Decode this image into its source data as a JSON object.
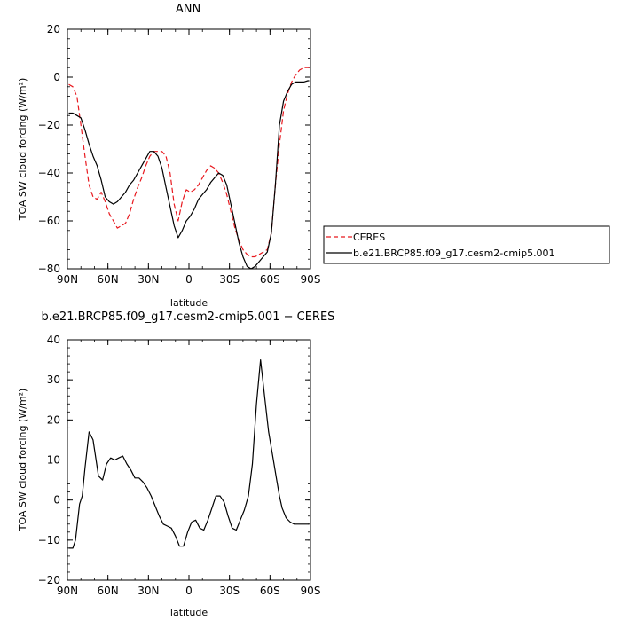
{
  "chart_data": [
    {
      "type": "line",
      "title": "ANN",
      "xlabel": "latitude",
      "ylabel": "TOA SW cloud forcing (W/m²)",
      "xlim": [
        90,
        -90
      ],
      "ylim": [
        -80,
        20
      ],
      "xticks": [
        90,
        60,
        30,
        0,
        -30,
        -60,
        -90
      ],
      "xtick_labels": [
        "90N",
        "60N",
        "30N",
        "0",
        "30S",
        "60S",
        "90S"
      ],
      "yticks": [
        -80,
        -60,
        -40,
        -20,
        0,
        20
      ],
      "ytick_labels": [
        "−80",
        "−60",
        "−40",
        "−20",
        "0",
        "20"
      ],
      "legend": {
        "placement": "outside-right"
      },
      "series": [
        {
          "name": "CERES",
          "color": "#e8191f",
          "dash": "dashed",
          "x": [
            89,
            86,
            83,
            80,
            77,
            74,
            71,
            68,
            65,
            62,
            59,
            56,
            53,
            50,
            47,
            44,
            41,
            38,
            35,
            32,
            29,
            26,
            23,
            20,
            17,
            14,
            11,
            8,
            5,
            2,
            -1,
            -4,
            -7,
            -10,
            -13,
            -16,
            -19,
            -22,
            -25,
            -28,
            -31,
            -34,
            -37,
            -40,
            -43,
            -46,
            -49,
            -52,
            -55,
            -58,
            -61,
            -64,
            -67,
            -70,
            -73,
            -76,
            -79,
            -82,
            -85,
            -88,
            -89
          ],
          "y": [
            -3,
            -4,
            -8,
            -20,
            -33,
            -45,
            -50,
            -51,
            -48,
            -52,
            -57,
            -60,
            -63,
            -62,
            -61,
            -57,
            -51,
            -46,
            -42,
            -37,
            -33,
            -31,
            -31,
            -31,
            -33,
            -40,
            -53,
            -60,
            -52,
            -47,
            -48,
            -47,
            -45,
            -42,
            -39,
            -37,
            -38,
            -40,
            -44,
            -49,
            -56,
            -63,
            -68,
            -72,
            -74,
            -75,
            -75,
            -74,
            -73,
            -72,
            -65,
            -45,
            -28,
            -14,
            -7,
            -2,
            1,
            3,
            4,
            4,
            4
          ]
        },
        {
          "name": "b.e21.BRCP85.f09_g17.cesm2-cmip5.001",
          "color": "#000000",
          "dash": "solid",
          "x": [
            89,
            86,
            83,
            80,
            77,
            74,
            71,
            68,
            65,
            62,
            59,
            56,
            53,
            50,
            47,
            44,
            41,
            38,
            35,
            32,
            29,
            26,
            23,
            20,
            17,
            14,
            11,
            8,
            5,
            2,
            -1,
            -4,
            -7,
            -10,
            -13,
            -16,
            -19,
            -22,
            -25,
            -28,
            -31,
            -34,
            -37,
            -40,
            -43,
            -46,
            -49,
            -52,
            -55,
            -58,
            -61,
            -64,
            -67,
            -70,
            -73,
            -76,
            -79,
            -82,
            -85,
            -88,
            -89
          ],
          "y": [
            -15,
            -15,
            -16,
            -17,
            -22,
            -28,
            -33,
            -37,
            -43,
            -50,
            -52,
            -53,
            -52,
            -50,
            -48,
            -45,
            -43,
            -40,
            -37,
            -34,
            -31,
            -31,
            -33,
            -38,
            -46,
            -54,
            -62,
            -67,
            -64,
            -60,
            -58,
            -55,
            -51,
            -49,
            -47,
            -44,
            -42,
            -40,
            -41,
            -45,
            -53,
            -61,
            -69,
            -75,
            -79,
            -80,
            -79,
            -77,
            -75,
            -73,
            -65,
            -45,
            -20,
            -10,
            -6,
            -3,
            -2,
            -2,
            -2,
            -1.5,
            -1.5
          ]
        }
      ]
    },
    {
      "type": "line",
      "title": "b.e21.BRCP85.f09_g17.cesm2-cmip5.001 − CERES",
      "xlabel": "latitude",
      "ylabel": "TOA SW cloud forcing (W/m²)",
      "xlim": [
        90,
        -90
      ],
      "ylim": [
        -20,
        40
      ],
      "xticks": [
        90,
        60,
        30,
        0,
        -30,
        -60,
        -90
      ],
      "xtick_labels": [
        "90N",
        "60N",
        "30N",
        "0",
        "30S",
        "60S",
        "90S"
      ],
      "yticks": [
        -20,
        -10,
        0,
        10,
        20,
        30,
        40
      ],
      "ytick_labels": [
        "−20",
        "−10",
        "0",
        "10",
        "20",
        "30",
        "40"
      ],
      "series": [
        {
          "color": "#000000",
          "dash": "solid",
          "x": [
            89,
            86,
            84,
            81,
            79,
            77,
            74,
            71,
            67,
            64,
            61,
            58,
            55,
            52,
            49,
            46,
            43,
            40,
            37,
            34,
            31,
            28,
            25,
            22,
            19,
            16,
            13,
            10,
            7,
            4,
            1,
            -2,
            -5,
            -8,
            -11,
            -14,
            -17,
            -20,
            -23,
            -26,
            -29,
            -32,
            -35,
            -38,
            -41,
            -44,
            -47,
            -50,
            -53,
            -56,
            -59,
            -62,
            -65,
            -67,
            -69,
            -72,
            -75,
            -78,
            -81,
            -84,
            -87,
            -89
          ],
          "y": [
            -12,
            -12,
            -10,
            -1,
            1,
            8,
            17,
            15,
            6,
            5,
            9,
            10.5,
            10,
            10.5,
            11,
            9,
            7.5,
            5.5,
            5.5,
            4.5,
            3,
            1,
            -1.5,
            -4,
            -6,
            -6.5,
            -7,
            -9,
            -11.5,
            -11.5,
            -8,
            -5.5,
            -5,
            -7,
            -7.5,
            -5,
            -2,
            1,
            1,
            -0.5,
            -4,
            -7,
            -7.5,
            -5,
            -2.5,
            1,
            9,
            24,
            35,
            26,
            17,
            11,
            5,
            1,
            -2,
            -4.5,
            -5.5,
            -6,
            -6,
            -6,
            -6,
            -6
          ]
        }
      ]
    }
  ]
}
